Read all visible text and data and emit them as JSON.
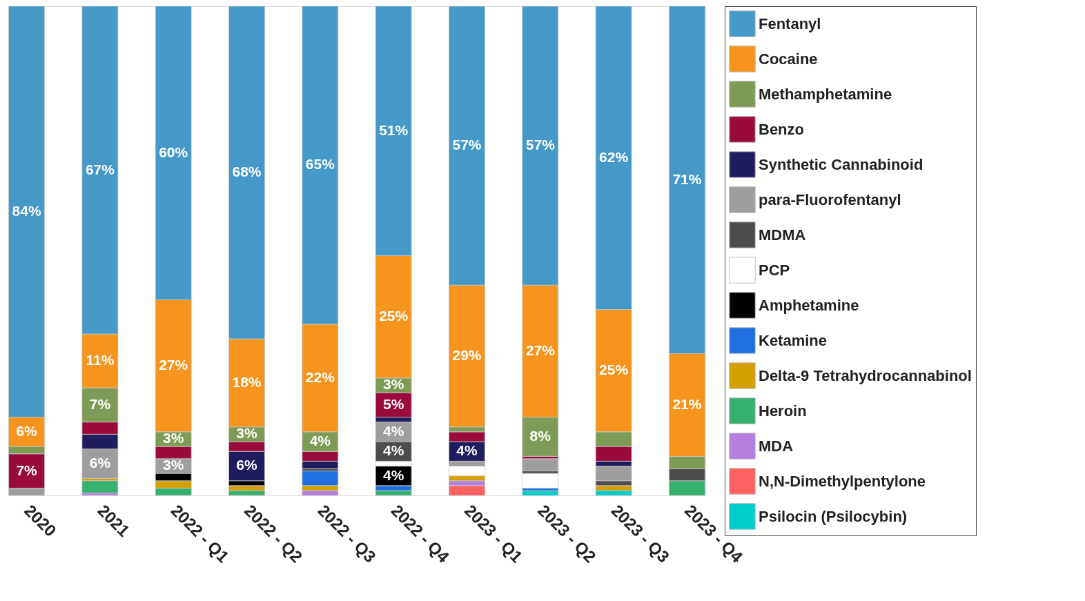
{
  "chart_data": {
    "type": "bar",
    "stacked": true,
    "legend": "right",
    "tick_labels": "x",
    "categories": [
      "2020",
      "2021",
      "2022 - Q1",
      "2022 - Q2",
      "2022 - Q3",
      "2022 - Q4",
      "2023 - Q1",
      "2023 - Q2",
      "2023 - Q3",
      "2023 - Q4"
    ],
    "series": [
      {
        "name": "Psilocin (Psilocybin)",
        "color": "#00cccc",
        "values": [
          null,
          null,
          null,
          null,
          null,
          null,
          null,
          1,
          1,
          null
        ]
      },
      {
        "name": "N,N-Dimethylpentylone",
        "color": "#ff6060",
        "values": [
          null,
          null,
          null,
          null,
          null,
          null,
          2,
          null,
          null,
          null
        ]
      },
      {
        "name": "MDA",
        "color": "#b57fe0",
        "values": [
          null,
          0.5,
          null,
          null,
          1,
          null,
          1,
          null,
          null,
          null
        ]
      },
      {
        "name": "Heroin",
        "color": "#35b06f",
        "values": [
          null,
          2.5,
          1.5,
          1,
          null,
          1,
          null,
          null,
          null,
          3
        ]
      },
      {
        "name": "Delta-9 Tetrahydrocannabinol",
        "color": "#d4a000",
        "values": [
          null,
          0.5,
          1.5,
          1,
          1,
          null,
          1,
          null,
          1,
          null
        ]
      },
      {
        "name": "Ketamine",
        "color": "#1f6fe0",
        "values": [
          null,
          null,
          null,
          null,
          3,
          1,
          null,
          0.5,
          null,
          null
        ]
      },
      {
        "name": "Amphetamine",
        "color": "#000000",
        "values": [
          null,
          null,
          1.5,
          1,
          null,
          4,
          null,
          null,
          null,
          null
        ],
        "value_labels": [
          null,
          null,
          null,
          null,
          null,
          "4%",
          null,
          null,
          null,
          null
        ]
      },
      {
        "name": "PCP",
        "color": "#ffffff",
        "values": [
          null,
          null,
          null,
          null,
          null,
          1,
          2,
          3,
          null,
          null
        ]
      },
      {
        "name": "MDMA",
        "color": "#4d4d4d",
        "values": [
          null,
          null,
          null,
          null,
          0.5,
          4,
          null,
          0.5,
          1,
          2.5
        ],
        "value_labels": [
          null,
          null,
          null,
          null,
          null,
          "4%",
          null,
          null,
          null,
          null
        ]
      },
      {
        "name": "para-Fluorofentanyl",
        "color": "#9e9e9e",
        "values": [
          1.5,
          6,
          3,
          null,
          null,
          4,
          1,
          2.5,
          3,
          null
        ],
        "value_labels": [
          null,
          "6%",
          "3%",
          null,
          null,
          "4%",
          null,
          null,
          null,
          null
        ]
      },
      {
        "name": "Synthetic Cannabinoid",
        "color": "#1f1d5e",
        "values": [
          null,
          3,
          null,
          6,
          1.5,
          1,
          4,
          null,
          1,
          null
        ],
        "value_labels": [
          null,
          null,
          null,
          "6%",
          null,
          null,
          "4%",
          null,
          null,
          null
        ]
      },
      {
        "name": "Benzo",
        "color": "#9b0a3d",
        "values": [
          7,
          2.5,
          2.5,
          2,
          2,
          5,
          2,
          0.5,
          3,
          null
        ],
        "value_labels": [
          "7%",
          null,
          null,
          null,
          null,
          "5%",
          null,
          null,
          null,
          null
        ]
      },
      {
        "name": "Methamphetamine",
        "color": "#7e9b55",
        "values": [
          1.5,
          7,
          3,
          3,
          4,
          3,
          1,
          8,
          3,
          2.5
        ],
        "value_labels": [
          null,
          "7%",
          "3%",
          "3%",
          "4%",
          "3%",
          null,
          "8%",
          null,
          null
        ]
      },
      {
        "name": "Cocaine",
        "color": "#f7941d",
        "values": [
          6,
          11,
          27,
          18,
          22,
          25,
          29,
          27,
          25,
          21
        ],
        "value_labels": [
          "6%",
          "11%",
          "27%",
          "18%",
          "22%",
          "25%",
          "29%",
          "27%",
          "25%",
          "21%"
        ]
      },
      {
        "name": "Fentanyl",
        "color": "#4499c9",
        "values": [
          84,
          67,
          60,
          68,
          65,
          51,
          57,
          57,
          62,
          71
        ],
        "value_labels": [
          "84%",
          "67%",
          "60%",
          "68%",
          "65%",
          "51%",
          "57%",
          "57%",
          "62%",
          "71%"
        ]
      }
    ]
  }
}
